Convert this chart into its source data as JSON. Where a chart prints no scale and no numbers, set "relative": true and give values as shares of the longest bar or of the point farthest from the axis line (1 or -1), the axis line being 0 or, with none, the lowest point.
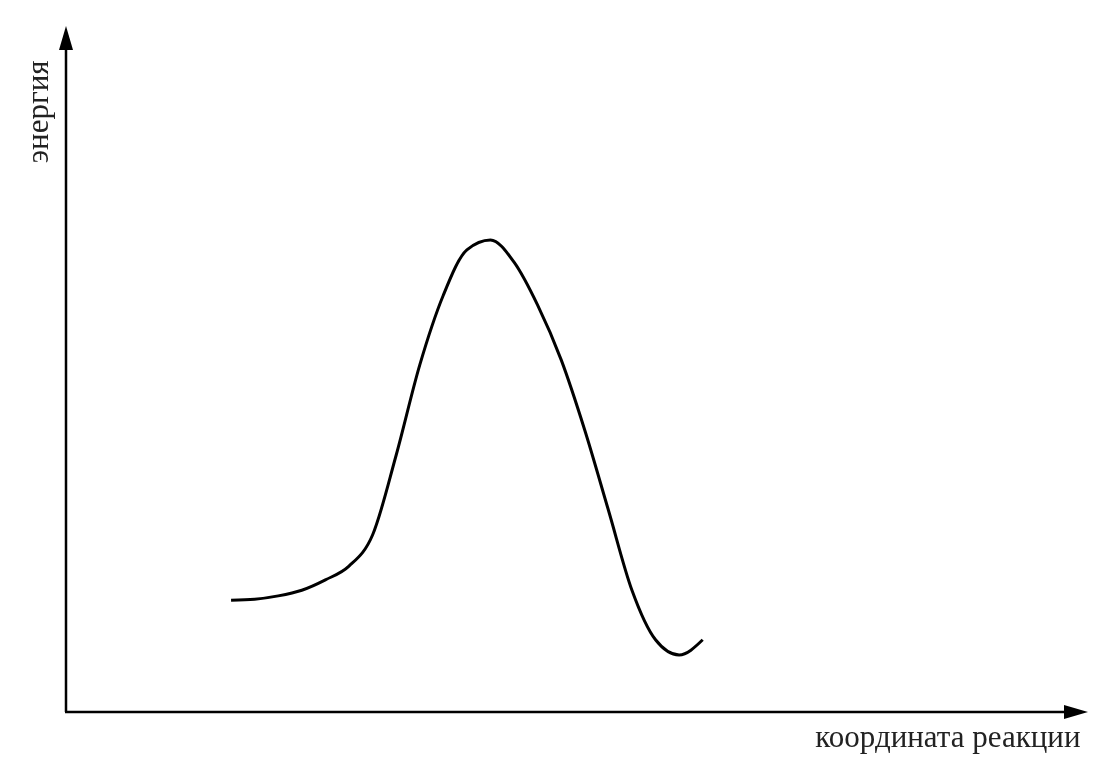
{
  "chart_data": {
    "type": "line",
    "relative": true,
    "xlabel": "координата реакции",
    "ylabel": "энергия",
    "categories": [
      null,
      null,
      null,
      null,
      null,
      null,
      null,
      null,
      null,
      null,
      null,
      null,
      null,
      null,
      null,
      null,
      null,
      null,
      null,
      null,
      null,
      null,
      null,
      null,
      null,
      null,
      null,
      null,
      null,
      null,
      null,
      null,
      null,
      null,
      null,
      null,
      null,
      null,
      null,
      null,
      null,
      null,
      null,
      null
    ],
    "series": [
      {
        "color": "#000000",
        "values": [
          null,
          null,
          null,
          null,
          null,
          null,
          null,
          0.237,
          0.239,
          0.246,
          0.258,
          0.28,
          0.309,
          0.375,
          0.544,
          0.735,
          0.883,
          0.979,
          1,
          0.953,
          0.862,
          0.746,
          0.597,
          0.428,
          0.258,
          0.153,
          0.121,
          0.153,
          null,
          null,
          null,
          null,
          null,
          null,
          null,
          null,
          null,
          null,
          null,
          null,
          null,
          null,
          null,
          null
        ]
      }
    ]
  }
}
